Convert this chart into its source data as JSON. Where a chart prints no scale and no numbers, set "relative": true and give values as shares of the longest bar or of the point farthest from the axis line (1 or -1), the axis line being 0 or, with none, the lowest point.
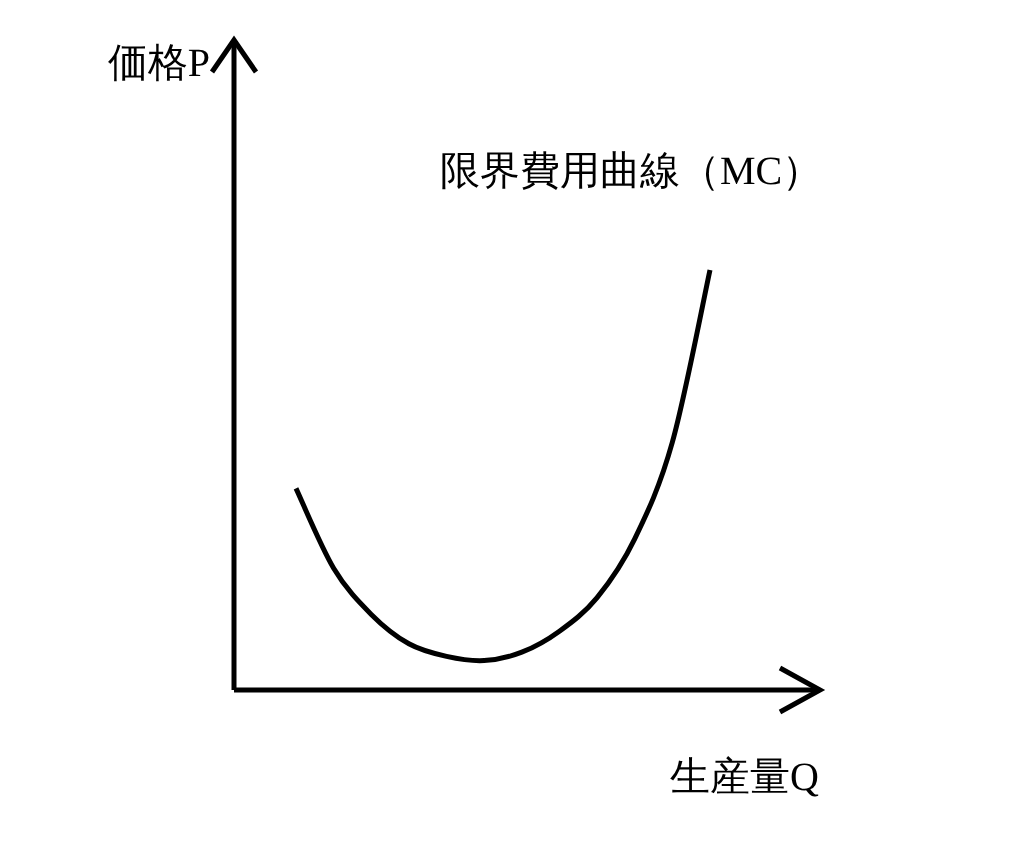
{
  "chart_data": {
    "type": "line",
    "relative": true,
    "ylabel": "価格P",
    "xlabel": "生産量Q",
    "categories": [
      null,
      null,
      null,
      null,
      null,
      null,
      null,
      null,
      null,
      null,
      null,
      null
    ],
    "series": [
      {
        "name": "限界費用曲線（MC）",
        "color": "#000000",
        "values": [
          0.48,
          0.29,
          0.18,
          0.11,
          0.08,
          0.07,
          0.09,
          0.14,
          0.22,
          0.36,
          0.59,
          1
        ]
      }
    ],
    "marker": "none",
    "line_style": "solid"
  }
}
